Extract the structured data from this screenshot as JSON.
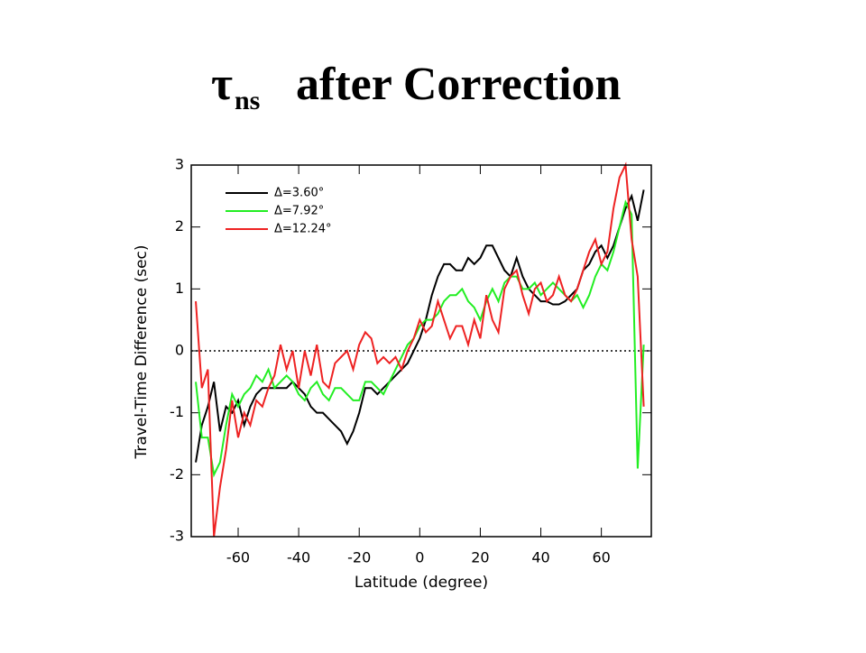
{
  "chart_data": {
    "type": "line",
    "title": "after Correction",
    "title_symbol": "τ",
    "title_subscript": "ns",
    "x_label": "Latitude (degree)",
    "y_label": "Travel-Time Difference (sec)",
    "x": [
      -74,
      -72,
      -70,
      -68,
      -66,
      -64,
      -62,
      -60,
      -58,
      -56,
      -54,
      -52,
      -50,
      -48,
      -46,
      -44,
      -42,
      -40,
      -38,
      -36,
      -34,
      -32,
      -30,
      -28,
      -26,
      -24,
      -22,
      -20,
      -18,
      -16,
      -14,
      -12,
      -10,
      -8,
      -6,
      -4,
      -2,
      0,
      2,
      4,
      6,
      8,
      10,
      12,
      14,
      16,
      18,
      20,
      22,
      24,
      26,
      28,
      30,
      32,
      34,
      36,
      38,
      40,
      42,
      44,
      46,
      48,
      50,
      52,
      54,
      56,
      58,
      60,
      62,
      64,
      66,
      68,
      70,
      72,
      74
    ],
    "series": [
      {
        "name": "Δ=3.60°",
        "color": "#000000",
        "values": [
          -1.8,
          -1.2,
          -0.9,
          -0.5,
          -1.3,
          -0.9,
          -1.0,
          -0.8,
          -1.2,
          -0.9,
          -0.7,
          -0.6,
          -0.6,
          -0.6,
          -0.6,
          -0.6,
          -0.5,
          -0.6,
          -0.7,
          -0.9,
          -1.0,
          -1.0,
          -1.1,
          -1.2,
          -1.3,
          -1.5,
          -1.3,
          -1.0,
          -0.6,
          -0.6,
          -0.7,
          -0.6,
          -0.5,
          -0.4,
          -0.3,
          -0.2,
          0.0,
          0.2,
          0.5,
          0.9,
          1.2,
          1.4,
          1.4,
          1.3,
          1.3,
          1.5,
          1.4,
          1.5,
          1.7,
          1.7,
          1.5,
          1.3,
          1.2,
          1.5,
          1.2,
          1.0,
          0.9,
          0.8,
          0.8,
          0.75,
          0.75,
          0.8,
          0.9,
          1.0,
          1.3,
          1.4,
          1.6,
          1.7,
          1.5,
          1.7,
          2.0,
          2.3,
          2.5,
          2.1,
          2.6
        ]
      },
      {
        "name": "Δ=7.92°",
        "color": "#22ee22",
        "values": [
          -0.5,
          -1.4,
          -1.4,
          -2.0,
          -1.8,
          -1.2,
          -0.7,
          -0.9,
          -0.7,
          -0.6,
          -0.4,
          -0.5,
          -0.3,
          -0.6,
          -0.5,
          -0.4,
          -0.5,
          -0.7,
          -0.8,
          -0.6,
          -0.5,
          -0.7,
          -0.8,
          -0.6,
          -0.6,
          -0.7,
          -0.8,
          -0.8,
          -0.5,
          -0.5,
          -0.6,
          -0.7,
          -0.5,
          -0.3,
          -0.1,
          0.1,
          0.2,
          0.4,
          0.5,
          0.5,
          0.6,
          0.8,
          0.9,
          0.9,
          1.0,
          0.8,
          0.7,
          0.5,
          0.8,
          1.0,
          0.8,
          1.1,
          1.2,
          1.2,
          1.0,
          1.0,
          1.1,
          0.9,
          1.0,
          1.1,
          1.0,
          0.9,
          0.8,
          0.9,
          0.7,
          0.9,
          1.2,
          1.4,
          1.3,
          1.6,
          2.0,
          2.4,
          2.2,
          -1.9,
          0.1
        ]
      },
      {
        "name": "Δ=12.24°",
        "color": "#ee2222",
        "values": [
          0.8,
          -0.6,
          -0.3,
          -3.0,
          -2.2,
          -1.6,
          -0.8,
          -1.4,
          -1.0,
          -1.2,
          -0.8,
          -0.9,
          -0.6,
          -0.4,
          0.1,
          -0.3,
          0.0,
          -0.6,
          0.0,
          -0.4,
          0.1,
          -0.5,
          -0.6,
          -0.2,
          -0.1,
          0.0,
          -0.3,
          0.1,
          0.3,
          0.2,
          -0.2,
          -0.1,
          -0.2,
          -0.1,
          -0.3,
          0.0,
          0.2,
          0.5,
          0.3,
          0.4,
          0.8,
          0.5,
          0.2,
          0.4,
          0.4,
          0.1,
          0.5,
          0.2,
          0.9,
          0.5,
          0.3,
          1.0,
          1.2,
          1.3,
          0.9,
          0.6,
          1.0,
          1.1,
          0.8,
          0.9,
          1.2,
          0.9,
          0.8,
          1.0,
          1.3,
          1.6,
          1.8,
          1.4,
          1.6,
          2.3,
          2.8,
          3.0,
          1.8,
          1.2,
          -0.9
        ]
      }
    ],
    "xlim": [
      -75.5,
      76.5
    ],
    "xticks": [
      -60,
      -40,
      -20,
      0,
      20,
      40,
      60
    ],
    "ylim": [
      -3,
      3
    ],
    "yticks": [
      -3,
      -2,
      -1,
      0,
      1,
      2,
      3
    ],
    "reference_line": 0,
    "legend": "upper left"
  }
}
